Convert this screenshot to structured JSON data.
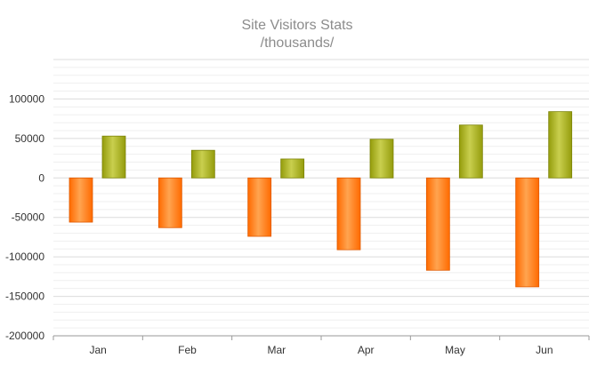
{
  "chart_data": {
    "type": "bar",
    "title": "Site Visitors Stats",
    "subtitle": "/thousands/",
    "xlabel": "",
    "ylabel": "",
    "categories": [
      "Jan",
      "Feb",
      "Mar",
      "Apr",
      "May",
      "Jun"
    ],
    "series": [
      {
        "color": "#ff7a1a",
        "values": [
          -56000,
          -63000,
          -74000,
          -91000,
          -117000,
          -138000
        ]
      },
      {
        "color": "#a8b020",
        "values": [
          53000,
          35000,
          24000,
          49000,
          67000,
          84000
        ]
      }
    ],
    "ylim": [
      -200000,
      150000
    ],
    "y_ticks": [
      "100000",
      "50000",
      "0",
      "-50000",
      "-100000",
      "-150000",
      "-200000"
    ],
    "y_tick_values": [
      100000,
      50000,
      0,
      -50000,
      -100000,
      -150000,
      -200000
    ],
    "grid": true,
    "legend": "none"
  }
}
